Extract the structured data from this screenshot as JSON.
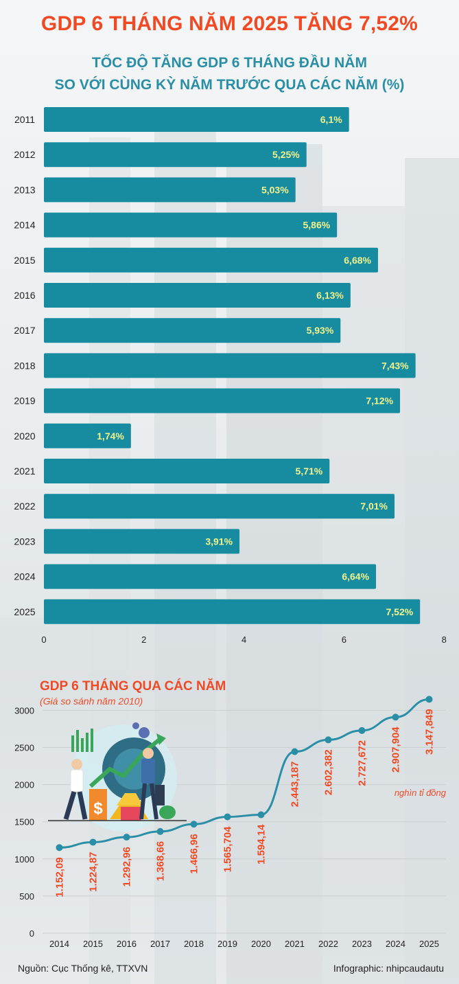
{
  "headline": "GDP 6 THÁNG NĂM 2025 TĂNG 7,52%",
  "bar_chart_title_line1": "TỐC ĐỘ TĂNG GDP 6 THÁNG ĐẦU NĂM",
  "bar_chart_title_line2": "SO VỚI CÙNG KỲ NĂM TRƯỚC QUA CÁC NĂM (%)",
  "line_chart_title": "GDP 6 THÁNG QUA CÁC NĂM",
  "line_chart_subtitle": "(Giá so sánh năm 2010)",
  "unit_note": "nghìn tỉ đồng",
  "source": "Nguồn: Cục Thống kê, TTXVN",
  "credit": "Infographic: nhipcaudautu",
  "colors": {
    "accent": "#ef4a24",
    "teal": "#2a8fa6",
    "bar": "#178ba0",
    "bar_label": "#f1f58c",
    "line": "#2a8fa6"
  },
  "chart_data": [
    {
      "type": "bar",
      "orientation": "horizontal",
      "title": "TỐC ĐỘ TĂNG GDP 6 THÁNG ĐẦU NĂM SO VỚI CÙNG KỲ NĂM TRƯỚC QUA CÁC NĂM (%)",
      "categories": [
        "2011",
        "2012",
        "2013",
        "2014",
        "2015",
        "2016",
        "2017",
        "2018",
        "2019",
        "2020",
        "2021",
        "2022",
        "2023",
        "2024",
        "2025"
      ],
      "values": [
        6.1,
        5.25,
        5.03,
        5.86,
        6.68,
        6.13,
        5.93,
        7.43,
        7.12,
        1.74,
        5.71,
        7.01,
        3.91,
        6.64,
        7.52
      ],
      "value_labels": [
        "6,1%",
        "5,25%",
        "5,03%",
        "5,86%",
        "6,68%",
        "6,13%",
        "5,93%",
        "7,43%",
        "7,12%",
        "1,74%",
        "5,71%",
        "7,01%",
        "3,91%",
        "6,64%",
        "7,52%"
      ],
      "xlim": [
        0,
        8
      ],
      "xticks": [
        0,
        2,
        4,
        6,
        8
      ],
      "xtick_labels": [
        "0",
        "2",
        "4",
        "6",
        "8"
      ],
      "grid": false
    },
    {
      "type": "line",
      "title": "GDP 6 THÁNG QUA CÁC NĂM",
      "subtitle": "(Giá so sánh năm 2010)",
      "unit": "nghìn tỉ đồng",
      "x": [
        "2014",
        "2015",
        "2016",
        "2017",
        "2018",
        "2019",
        "2020",
        "2021",
        "2022",
        "2023",
        "2024",
        "2025"
      ],
      "values": [
        1152.09,
        1224.87,
        1292.96,
        1368.66,
        1466.96,
        1565.704,
        1594.14,
        2443.187,
        2602.382,
        2727.672,
        2907.904,
        3147.849
      ],
      "value_labels": [
        "1.152,09",
        "1.224,87",
        "1.292,96",
        "1.368,66",
        "1.466,96",
        "1.565,704",
        "1.594,14",
        "2.443,187",
        "2.602,382",
        "2.727,672",
        "2.907,904",
        "3.147,849"
      ],
      "ylim": [
        0,
        3000
      ],
      "yticks": [
        0,
        500,
        1000,
        1500,
        2000,
        2500,
        3000
      ],
      "ytick_labels": [
        "0",
        "500",
        "1000",
        "1500",
        "2000",
        "2500",
        "3000"
      ],
      "grid": true
    }
  ]
}
